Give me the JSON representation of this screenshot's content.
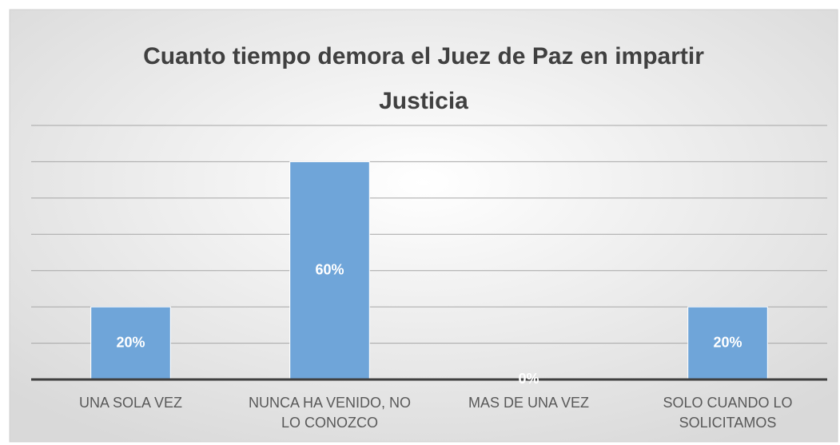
{
  "chart_data": {
    "type": "bar",
    "title": "Cuanto tiempo demora el Juez de Paz en impartir Justicia",
    "categories": [
      "UNA SOLA VEZ",
      "NUNCA HA VENIDO, NO LO CONOZCO",
      "MAS DE UNA VEZ",
      "SOLO CUANDO LO SOLICITAMOS"
    ],
    "values": [
      20,
      60,
      0,
      20
    ],
    "value_labels": [
      "20%",
      "60%",
      "0%",
      "20%"
    ],
    "color": "#6fa5d9",
    "ylim": [
      0,
      70
    ],
    "yticks": [
      0,
      10,
      20,
      30,
      40,
      50,
      60,
      70
    ],
    "grid": true
  }
}
